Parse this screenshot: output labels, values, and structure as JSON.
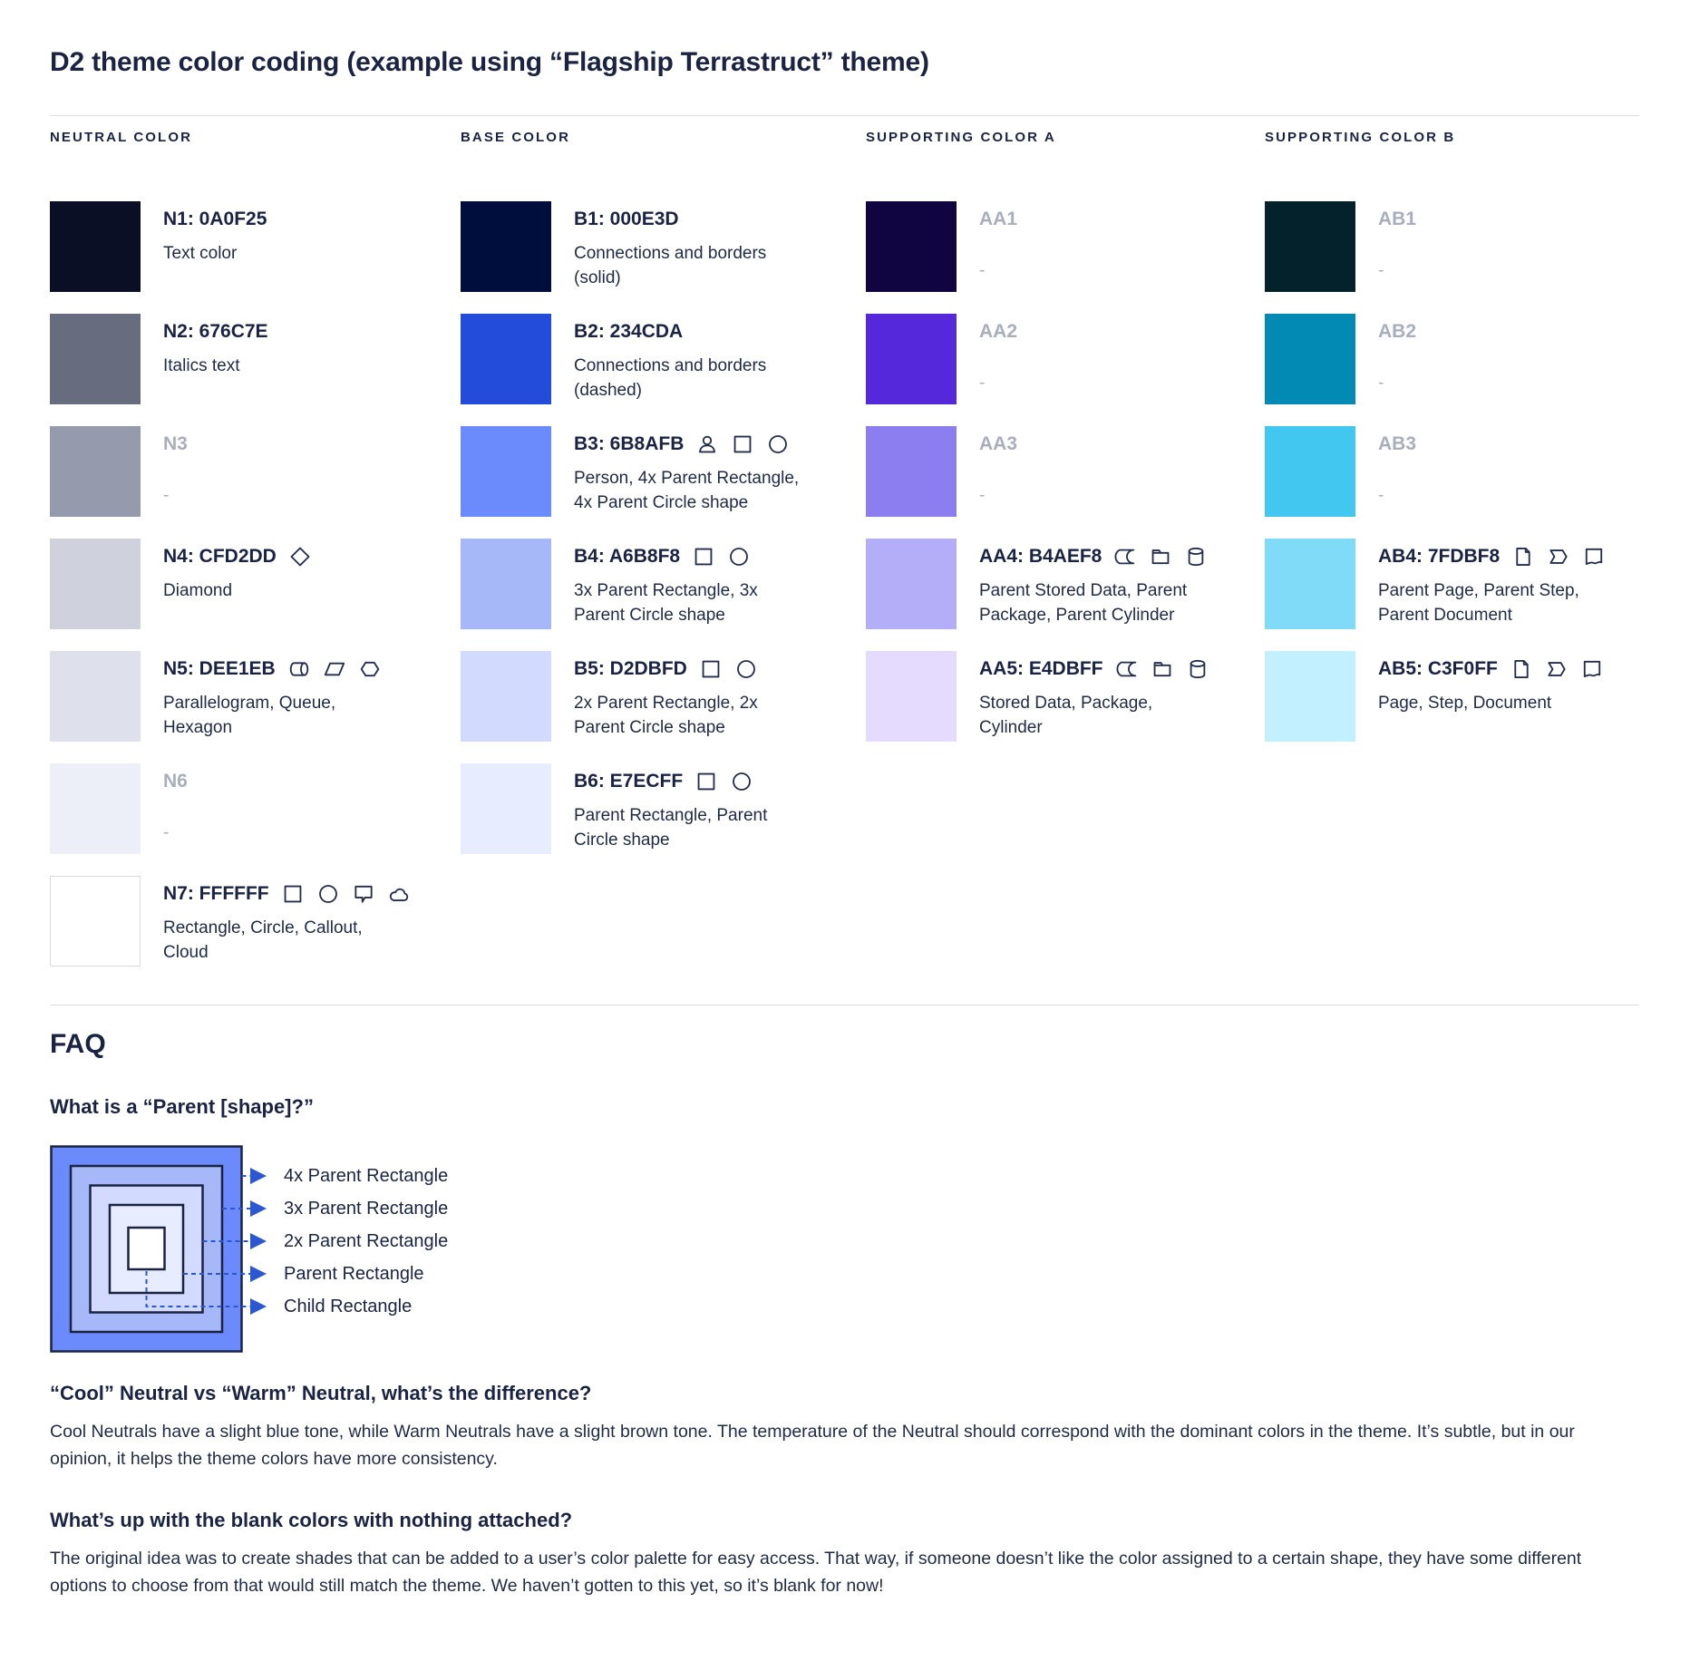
{
  "page": {
    "title": "D2 theme color coding (example using “Flagship Terrastruct” theme)"
  },
  "theme": {
    "ink": "#1A2342",
    "muted": "#A9AEBC",
    "arrow": "#2B57D0",
    "divider": "#DADDE3",
    "icon_stroke": "#242E4C"
  },
  "columns": [
    {
      "header": "NEUTRAL COLOR",
      "rows": [
        {
          "label": "N1: 0A0F25",
          "swatch": "#0A0F25",
          "description": "Text color",
          "icons": [],
          "blank": false
        },
        {
          "label": "N2: 676C7E",
          "swatch": "#676C7E",
          "description": "Italics text",
          "icons": [],
          "blank": false
        },
        {
          "label": "N3",
          "swatch": "#959BAD",
          "description": "-",
          "icons": [],
          "blank": true
        },
        {
          "label": "N4: CFD2DD",
          "swatch": "#CFD2DD",
          "description": "Diamond",
          "icons": [
            "diamond"
          ],
          "blank": false
        },
        {
          "label": "N5: DEE1EB",
          "swatch": "#DEE1EB",
          "description": "Parallelogram, Queue, Hexagon",
          "icons": [
            "queue",
            "parallelogram",
            "hexagon"
          ],
          "blank": false
        },
        {
          "label": "N6",
          "swatch": "#ECEFF7",
          "description": "-",
          "icons": [],
          "blank": true
        },
        {
          "label": "N7: FFFFFF",
          "swatch": "#FFFFFF",
          "description": "Rectangle, Circle, Callout, Cloud",
          "icons": [
            "rectangle",
            "circle",
            "callout",
            "cloud"
          ],
          "blank": false,
          "bordered": true
        }
      ]
    },
    {
      "header": "BASE COLOR",
      "rows": [
        {
          "label": "B1: 000E3D",
          "swatch": "#000E3D",
          "description": "Connections and borders (solid)",
          "icons": [],
          "blank": false
        },
        {
          "label": "B2: 234CDA",
          "swatch": "#234CDA",
          "description": "Connections and borders (dashed)",
          "icons": [],
          "blank": false
        },
        {
          "label": "B3: 6B8AFB",
          "swatch": "#6B8AFB",
          "description": "Person, 4x Parent Rectangle, 4x Parent Circle shape",
          "icons": [
            "person",
            "rectangle",
            "circle"
          ],
          "blank": false
        },
        {
          "label": "B4: A6B8F8",
          "swatch": "#A6B8F8",
          "description": "3x Parent Rectangle, 3x Parent Circle shape",
          "icons": [
            "rectangle",
            "circle"
          ],
          "blank": false
        },
        {
          "label": "B5: D2DBFD",
          "swatch": "#D2DBFD",
          "description": "2x Parent Rectangle, 2x Parent Circle shape",
          "icons": [
            "rectangle",
            "circle"
          ],
          "blank": false
        },
        {
          "label": "B6: E7ECFF",
          "swatch": "#E7ECFF",
          "description": "Parent Rectangle, Parent Circle shape",
          "icons": [
            "rectangle",
            "circle"
          ],
          "blank": false
        }
      ]
    },
    {
      "header": "SUPPORTING COLOR A",
      "rows": [
        {
          "label": "AA1",
          "swatch": "#110541",
          "description": "-",
          "icons": [],
          "blank": true
        },
        {
          "label": "AA2",
          "swatch": "#5628DB",
          "description": "-",
          "icons": [],
          "blank": true
        },
        {
          "label": "AA3",
          "swatch": "#8C7DF0",
          "description": "-",
          "icons": [],
          "blank": true
        },
        {
          "label": "AA4: B4AEF8",
          "swatch": "#B4AEF8",
          "description": "Parent Stored Data, Parent Package, Parent Cylinder",
          "icons": [
            "stored-data",
            "package",
            "cylinder"
          ],
          "blank": false
        },
        {
          "label": "AA5: E4DBFF",
          "swatch": "#E4DBFF",
          "description": "Stored Data, Package, Cylinder",
          "icons": [
            "stored-data",
            "package",
            "cylinder"
          ],
          "blank": false
        }
      ]
    },
    {
      "header": "SUPPORTING COLOR B",
      "rows": [
        {
          "label": "AB1",
          "swatch": "#04222C",
          "description": "-",
          "icons": [],
          "blank": true
        },
        {
          "label": "AB2",
          "swatch": "#028AB5",
          "description": "-",
          "icons": [],
          "blank": true
        },
        {
          "label": "AB3",
          "swatch": "#41C7F0",
          "description": "-",
          "icons": [],
          "blank": true
        },
        {
          "label": "AB4: 7FDBF8",
          "swatch": "#7FDBF8",
          "description": "Parent Page, Parent Step, Parent Document",
          "icons": [
            "page",
            "step",
            "document"
          ],
          "blank": false
        },
        {
          "label": "AB5: C3F0FF",
          "swatch": "#C3F0FF",
          "description": "Page, Step, Document",
          "icons": [
            "page",
            "step",
            "document"
          ],
          "blank": false
        }
      ]
    }
  ],
  "faq": {
    "title": "FAQ",
    "q1": {
      "question": "What is a “Parent [shape]?”",
      "diagram_labels": [
        "4x Parent Rectangle",
        "3x Parent Rectangle",
        "2x Parent Rectangle",
        "Parent Rectangle",
        "Child Rectangle"
      ],
      "diagram_fills": [
        "#6B8AFB",
        "#A6B8F8",
        "#D2DBFD",
        "#E7ECFF",
        "#FFFFFF"
      ]
    },
    "q2": {
      "question": "“Cool” Neutral vs “Warm” Neutral, what’s the difference?",
      "answer": "Cool Neutrals have a slight blue tone, while Warm Neutrals have a slight brown tone. The temperature of the Neutral should correspond with the dominant colors in the theme. It’s subtle, but in our opinion, it helps the theme colors have more consistency."
    },
    "q3": {
      "question": "What’s up with the blank colors with nothing attached?",
      "answer": "The original idea was to create shades that can be added to a user’s color palette for easy access. That way, if someone doesn’t like the color assigned to a certain shape, they have some different options to choose from that would still match the theme. We haven’t gotten to this yet, so it’s blank for now!"
    }
  }
}
